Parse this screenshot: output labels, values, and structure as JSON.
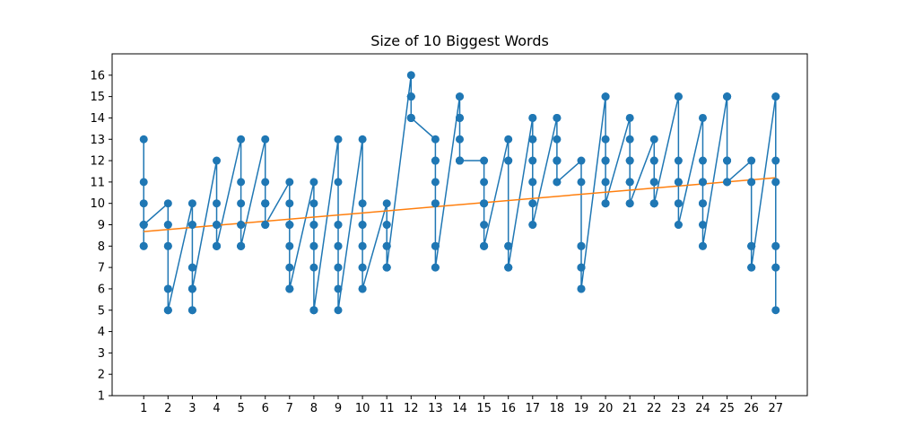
{
  "chart_data": {
    "type": "line",
    "title": "Size of 10 Biggest Words",
    "xlabel": "",
    "ylabel": "",
    "xlim": [
      -0.3,
      28.3
    ],
    "ylim": [
      1,
      17
    ],
    "xticks": [
      "1",
      "2",
      "3",
      "4",
      "5",
      "6",
      "7",
      "8",
      "9",
      "10",
      "11",
      "12",
      "13",
      "14",
      "15",
      "16",
      "17",
      "18",
      "19",
      "20",
      "21",
      "22",
      "23",
      "24",
      "25",
      "26",
      "27"
    ],
    "yticks": [
      "1",
      "2",
      "3",
      "4",
      "5",
      "6",
      "7",
      "8",
      "9",
      "10",
      "11",
      "12",
      "13",
      "14",
      "15",
      "16"
    ],
    "grid": false,
    "colors": {
      "series": "#1f77b4",
      "trend": "#ff7f0e"
    },
    "series": [
      {
        "marker": "circle",
        "x": [
          1,
          1,
          1,
          1,
          1,
          1,
          1,
          1,
          1,
          1,
          2,
          2,
          2,
          2,
          2,
          2,
          2,
          2,
          2,
          2,
          3,
          3,
          3,
          3,
          3,
          3,
          3,
          3,
          3,
          3,
          4,
          4,
          4,
          4,
          4,
          4,
          4,
          4,
          4,
          4,
          5,
          5,
          5,
          5,
          5,
          5,
          5,
          5,
          5,
          5,
          6,
          6,
          6,
          6,
          6,
          6,
          6,
          6,
          6,
          6,
          7,
          7,
          7,
          7,
          7,
          7,
          7,
          7,
          7,
          7,
          8,
          8,
          8,
          8,
          8,
          8,
          8,
          8,
          8,
          8,
          9,
          9,
          9,
          9,
          9,
          9,
          9,
          9,
          9,
          9,
          10,
          10,
          10,
          10,
          10,
          10,
          10,
          10,
          10,
          10,
          11,
          11,
          11,
          11,
          11,
          11,
          11,
          11,
          11,
          11,
          12,
          12,
          12,
          12,
          12,
          12,
          12,
          12,
          12,
          12,
          13,
          13,
          13,
          13,
          13,
          13,
          13,
          13,
          13,
          13,
          14,
          14,
          14,
          14,
          14,
          14,
          14,
          14,
          14,
          14,
          15,
          15,
          15,
          15,
          15,
          15,
          15,
          15,
          15,
          15,
          16,
          16,
          16,
          16,
          16,
          16,
          16,
          16,
          16,
          16,
          17,
          17,
          17,
          17,
          17,
          17,
          17,
          17,
          17,
          17,
          18,
          18,
          18,
          18,
          18,
          18,
          18,
          18,
          18,
          18,
          19,
          19,
          19,
          19,
          19,
          19,
          19,
          19,
          19,
          19,
          20,
          20,
          20,
          20,
          20,
          20,
          20,
          20,
          20,
          20,
          21,
          21,
          21,
          21,
          21,
          21,
          21,
          21,
          21,
          21,
          22,
          22,
          22,
          22,
          22,
          22,
          22,
          22,
          22,
          22,
          23,
          23,
          23,
          23,
          23,
          23,
          23,
          23,
          23,
          23,
          24,
          24,
          24,
          24,
          24,
          24,
          24,
          24,
          24,
          24,
          25,
          25,
          25,
          25,
          25,
          25,
          25,
          25,
          25,
          25,
          26,
          26,
          26,
          26,
          26,
          26,
          26,
          26,
          26,
          26,
          27,
          27,
          27,
          27,
          27,
          27,
          27,
          27,
          27,
          27
        ],
        "y": [
          13,
          11,
          10,
          9,
          9,
          9,
          9,
          8,
          8,
          9,
          10,
          9,
          9,
          8,
          8,
          6,
          6,
          5,
          5,
          5,
          10,
          9,
          9,
          7,
          7,
          6,
          6,
          5,
          5,
          6,
          12,
          10,
          9,
          9,
          9,
          8,
          8,
          8,
          8,
          8,
          13,
          11,
          10,
          9,
          9,
          8,
          8,
          8,
          8,
          8,
          13,
          11,
          10,
          10,
          10,
          10,
          10,
          9,
          9,
          9,
          11,
          10,
          9,
          9,
          9,
          8,
          7,
          6,
          6,
          6,
          11,
          10,
          9,
          9,
          8,
          8,
          7,
          5,
          5,
          5,
          13,
          11,
          9,
          9,
          8,
          8,
          7,
          7,
          6,
          5,
          13,
          10,
          9,
          9,
          8,
          8,
          7,
          7,
          6,
          6,
          10,
          9,
          9,
          8,
          8,
          8,
          7,
          7,
          7,
          7,
          16,
          15,
          15,
          15,
          15,
          14,
          14,
          14,
          14,
          14,
          13,
          12,
          12,
          11,
          10,
          10,
          8,
          8,
          7,
          7,
          15,
          15,
          14,
          14,
          14,
          13,
          12,
          12,
          12,
          12,
          12,
          11,
          10,
          10,
          10,
          9,
          8,
          8,
          8,
          8,
          13,
          12,
          12,
          8,
          8,
          8,
          7,
          7,
          7,
          7,
          14,
          14,
          13,
          13,
          12,
          11,
          11,
          10,
          9,
          9,
          14,
          14,
          13,
          12,
          12,
          12,
          12,
          12,
          11,
          11,
          12,
          11,
          8,
          8,
          8,
          7,
          7,
          7,
          6,
          6,
          15,
          15,
          13,
          12,
          12,
          12,
          11,
          11,
          10,
          10,
          14,
          13,
          12,
          12,
          11,
          11,
          11,
          11,
          10,
          10,
          13,
          12,
          12,
          11,
          11,
          11,
          10,
          10,
          10,
          10,
          15,
          15,
          12,
          11,
          11,
          11,
          10,
          10,
          9,
          9,
          14,
          12,
          11,
          11,
          11,
          10,
          10,
          9,
          8,
          8,
          15,
          15,
          15,
          15,
          12,
          12,
          12,
          11,
          11,
          11,
          12,
          11,
          11,
          8,
          8,
          8,
          8,
          7,
          7,
          7,
          15,
          15,
          12,
          11,
          11,
          8,
          8,
          7,
          7,
          5
        ]
      }
    ],
    "trend": {
      "x": [
        1,
        27
      ],
      "y": [
        8.68,
        11.2
      ]
    }
  }
}
